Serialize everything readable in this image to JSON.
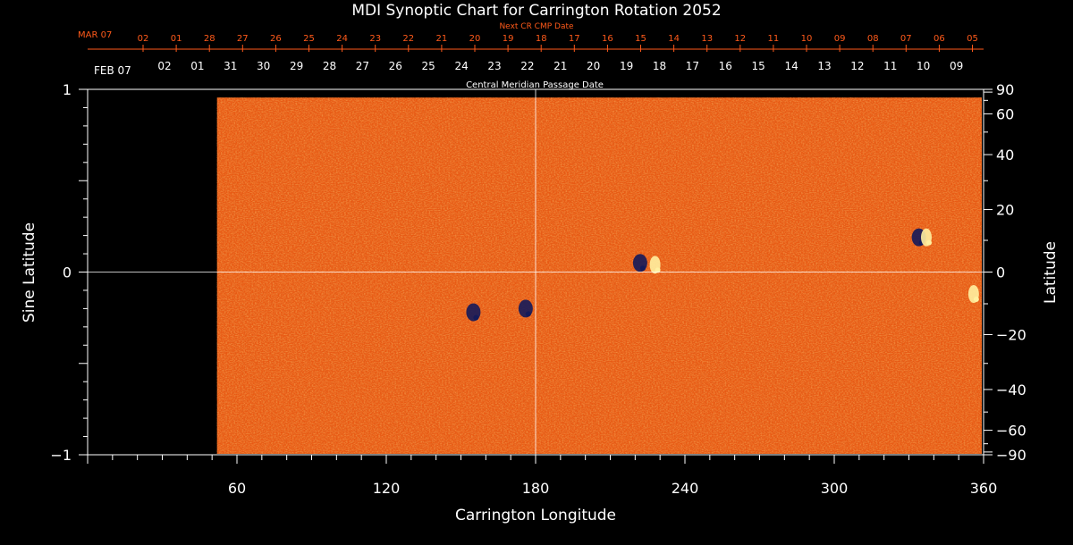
{
  "chart_data": {
    "type": "heatmap",
    "title": "MDI Synoptic Chart for Carrington Rotation 2052",
    "xlabel": "Carrington Longitude",
    "ylabel_left": "Sine Latitude",
    "ylabel_right": "Latitude",
    "xlim": [
      0,
      360
    ],
    "ylim": [
      -1,
      1
    ],
    "x_ticks": [
      60,
      120,
      180,
      240,
      300,
      360
    ],
    "y_ticks_left": [
      {
        "value": 1,
        "label": "1"
      },
      {
        "value": 0,
        "label": "0"
      },
      {
        "value": -1,
        "label": "−1"
      }
    ],
    "y_ticks_right": [
      {
        "deg": 90,
        "label": "90"
      },
      {
        "deg": 60,
        "label": "60"
      },
      {
        "deg": 40,
        "label": "40"
      },
      {
        "deg": 20,
        "label": "20"
      },
      {
        "deg": 0,
        "label": "0"
      },
      {
        "deg": -20,
        "label": "−20"
      },
      {
        "deg": -40,
        "label": "−40"
      },
      {
        "deg": -60,
        "label": "−60"
      },
      {
        "deg": -90,
        "label": "−90"
      }
    ],
    "data_start_longitude": 52,
    "crosshair": {
      "longitude": 180,
      "sine_latitude": 0
    },
    "colors": {
      "background": "#000000",
      "field": "#e85a14",
      "negative_polarity": "#141a5a",
      "positive_polarity": "#fff0a0",
      "axes": "#ffffff",
      "top_axis": "#ff5a1a"
    },
    "active_regions": [
      {
        "longitude": 222,
        "sine_latitude": 0.05,
        "polarity": "negative"
      },
      {
        "longitude": 228,
        "sine_latitude": 0.04,
        "polarity": "positive"
      },
      {
        "longitude": 155,
        "sine_latitude": -0.22,
        "polarity": "negative"
      },
      {
        "longitude": 334,
        "sine_latitude": 0.19,
        "polarity": "negative"
      },
      {
        "longitude": 337,
        "sine_latitude": 0.19,
        "polarity": "positive"
      },
      {
        "longitude": 356,
        "sine_latitude": -0.12,
        "polarity": "positive"
      },
      {
        "longitude": 176,
        "sine_latitude": -0.2,
        "polarity": "negative"
      }
    ],
    "top_axis": {
      "next_cr_label": "Next CR CMP Date",
      "next_cr_month": "MAR 07",
      "next_cr_dates": [
        "02",
        "01",
        "28",
        "27",
        "26",
        "25",
        "24",
        "23",
        "22",
        "21",
        "20",
        "19",
        "18",
        "17",
        "16",
        "15",
        "14",
        "13",
        "12",
        "11",
        "10",
        "09",
        "08",
        "07",
        "06",
        "05"
      ],
      "cmp_label": "Central Meridian Passage Date",
      "cmp_month": "FEB 07",
      "cmp_dates": [
        "02",
        "01",
        "31",
        "30",
        "29",
        "28",
        "27",
        "26",
        "25",
        "24",
        "23",
        "22",
        "21",
        "20",
        "19",
        "18",
        "17",
        "16",
        "15",
        "14",
        "13",
        "12",
        "11",
        "10",
        "09"
      ]
    }
  }
}
